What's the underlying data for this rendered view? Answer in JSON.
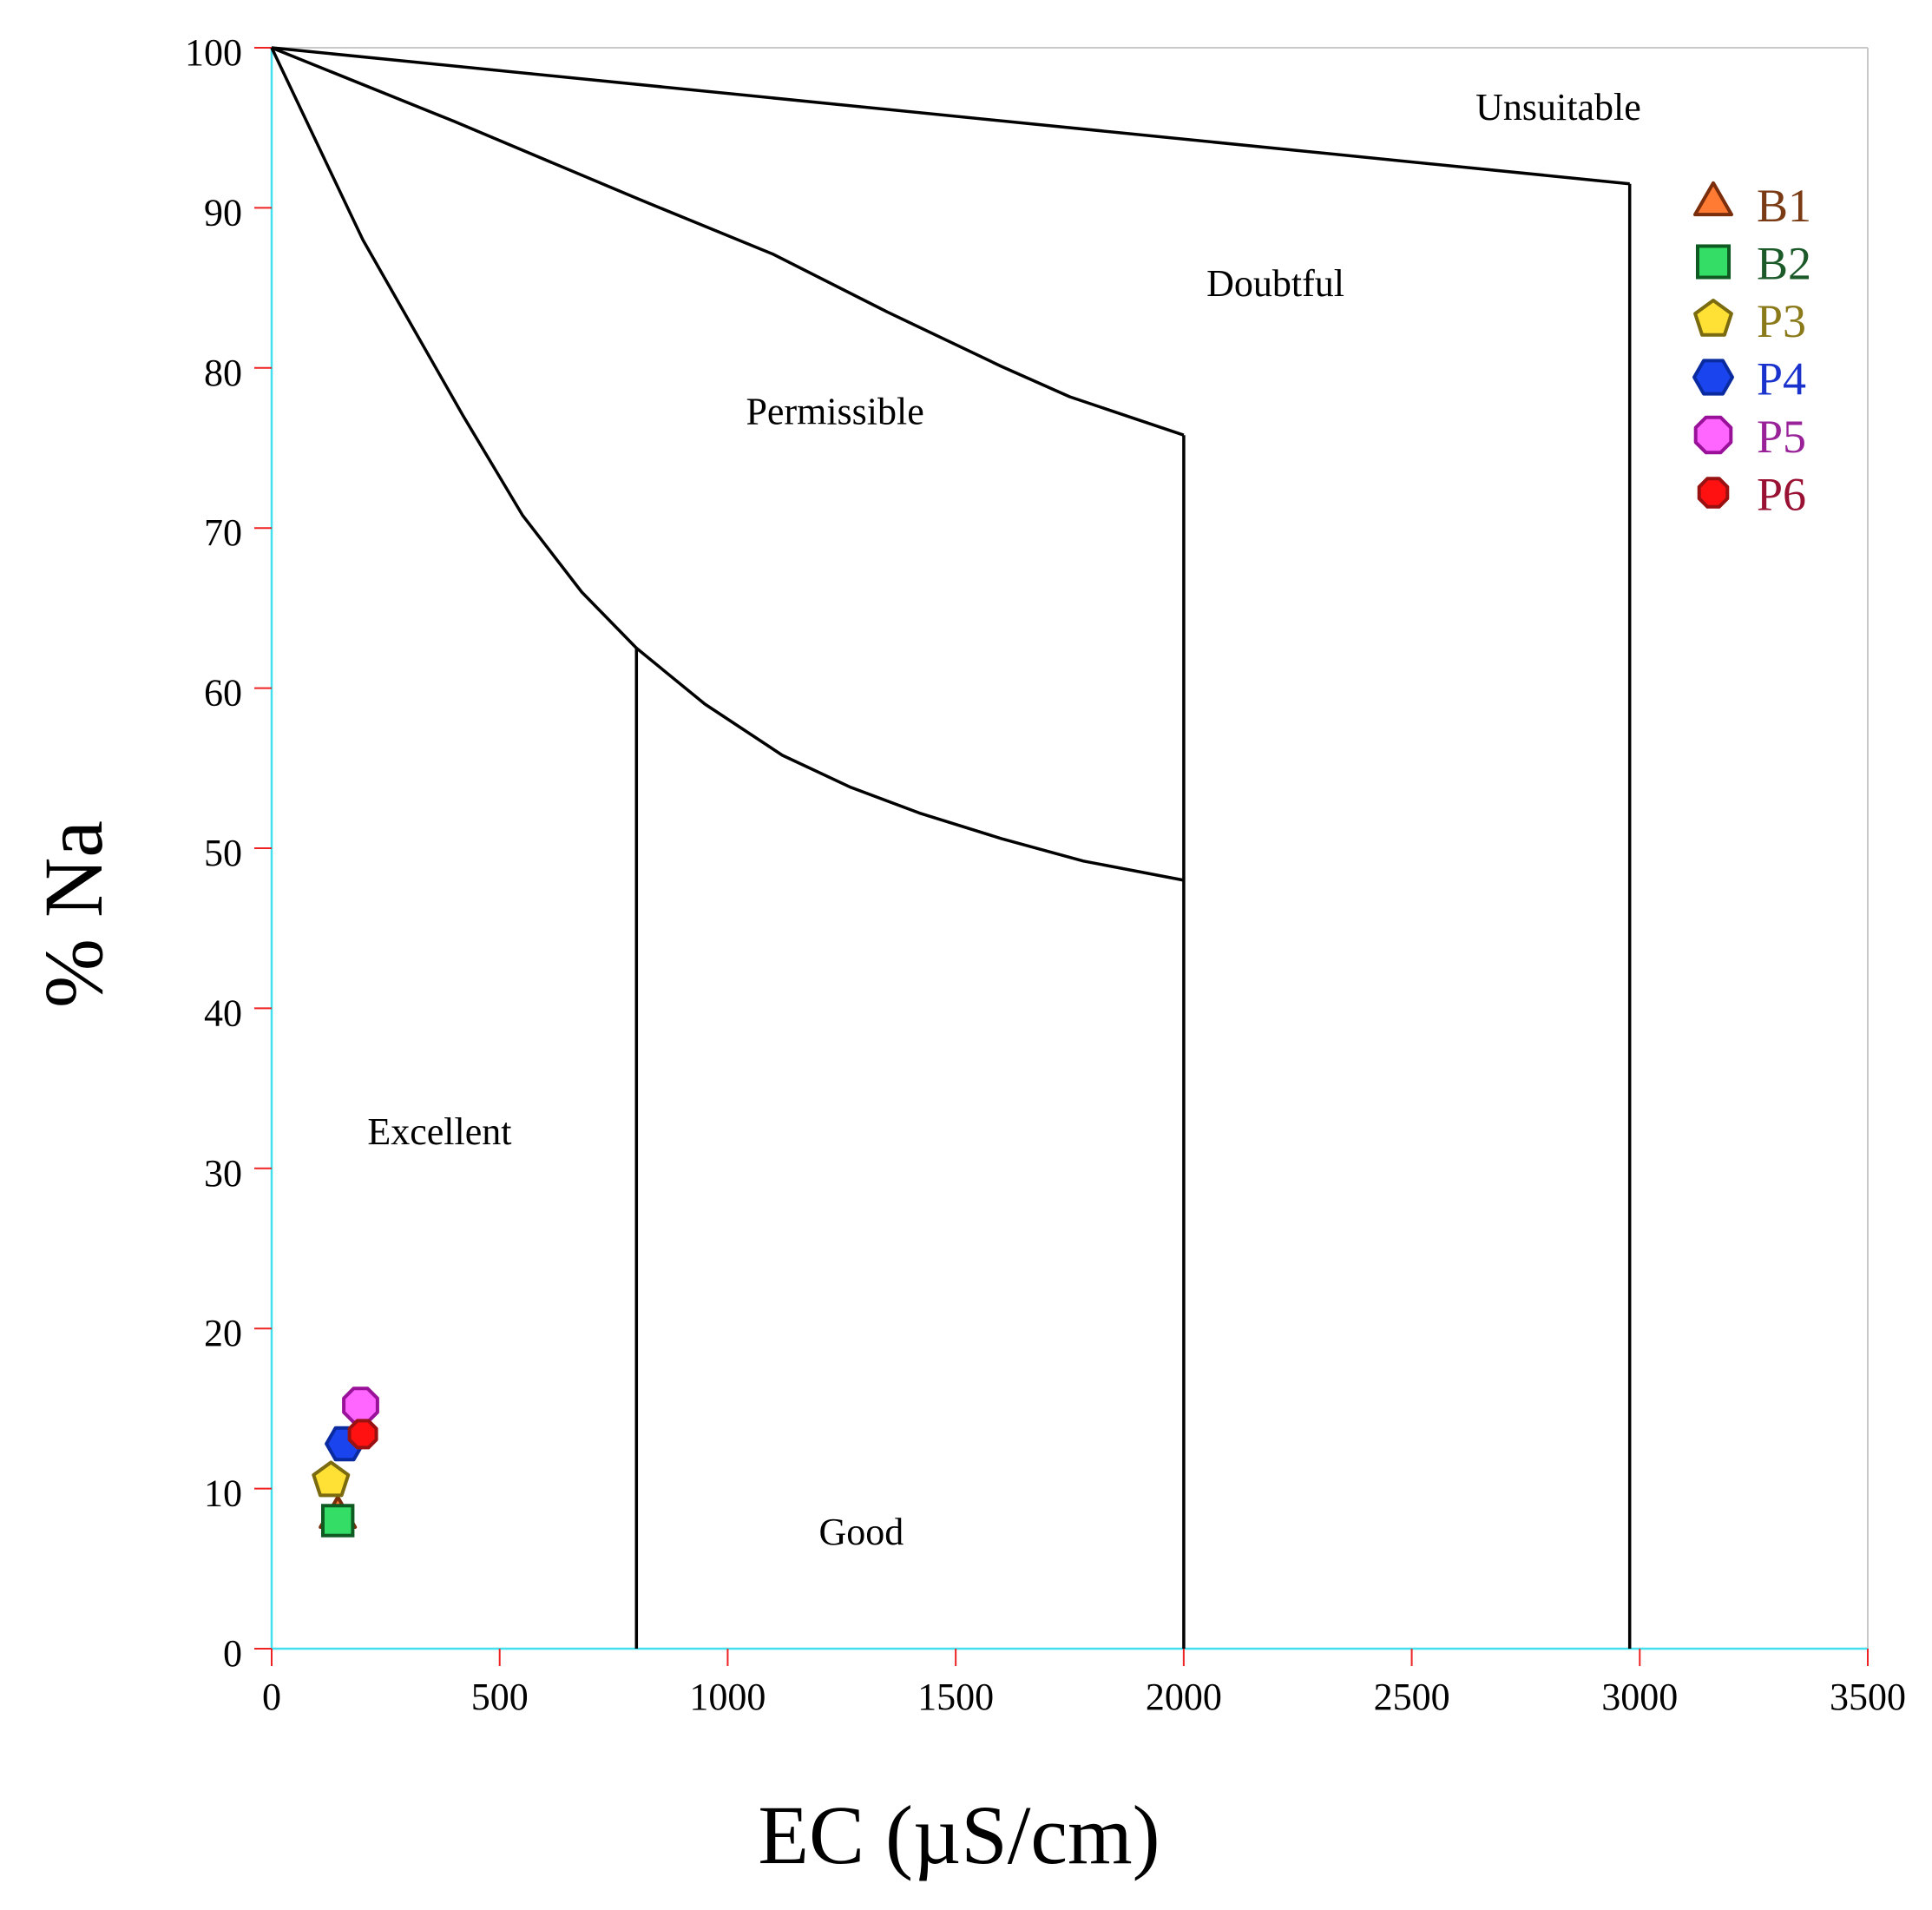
{
  "chart_data": {
    "type": "scatter",
    "title": "",
    "xlabel": "EC (µS/cm)",
    "ylabel": "% Na",
    "xlim": [
      0,
      3500
    ],
    "ylim": [
      0,
      100
    ],
    "x_ticks": [
      0,
      500,
      1000,
      1500,
      2000,
      2500,
      3000,
      3500
    ],
    "y_ticks": [
      0,
      10,
      20,
      30,
      40,
      50,
      60,
      70,
      80,
      90,
      100
    ],
    "x_tick_labels": [
      "0",
      "500",
      "1000",
      "1500",
      "2000",
      "2500",
      "3000",
      "3500"
    ],
    "y_tick_labels": [
      "0",
      "10",
      "20",
      "30",
      "40",
      "50",
      "60",
      "70",
      "80",
      "90",
      "100"
    ],
    "grid": false,
    "legend_position": "top-right",
    "series": [
      {
        "name": "B1",
        "marker": "triangle",
        "fill": "#ff7a33",
        "stroke": "#7a2e0b",
        "label_color": "#7a3a14",
        "points": [
          [
            145,
            8
          ]
        ]
      },
      {
        "name": "B2",
        "marker": "square",
        "fill": "#33dd66",
        "stroke": "#0f5a22",
        "label_color": "#1d5a2a",
        "points": [
          [
            145,
            8
          ]
        ]
      },
      {
        "name": "P3",
        "marker": "pentagon",
        "fill": "#ffe034",
        "stroke": "#7a6a10",
        "label_color": "#8a7a1a",
        "points": [
          [
            130,
            10.5
          ]
        ]
      },
      {
        "name": "P4",
        "marker": "hexagon",
        "fill": "#1a44ee",
        "stroke": "#0a2aa0",
        "label_color": "#1a33cc",
        "points": [
          [
            160,
            12.8
          ]
        ]
      },
      {
        "name": "P5",
        "marker": "octagon",
        "fill": "#ff66ff",
        "stroke": "#991199",
        "label_color": "#992299",
        "points": [
          [
            195,
            15.2
          ]
        ]
      },
      {
        "name": "P6",
        "marker": "octagon",
        "fill": "#ff1111",
        "stroke": "#991111",
        "label_color": "#991133",
        "points": [
          [
            200,
            13.4
          ]
        ]
      }
    ],
    "boundaries": [
      {
        "name": "excellent-good-boundary",
        "points": [
          [
            0,
            100
          ],
          [
            200,
            88
          ],
          [
            420,
            77
          ],
          [
            550,
            70.8
          ],
          [
            680,
            66
          ],
          [
            800,
            62.5
          ]
        ]
      },
      {
        "name": "excellent-vertical-boundary",
        "points": [
          [
            800,
            62.5
          ],
          [
            800,
            0
          ]
        ]
      },
      {
        "name": "good-permissible-boundary",
        "points": [
          [
            800,
            62.5
          ],
          [
            950,
            59
          ],
          [
            1120,
            55.8
          ],
          [
            1270,
            53.8
          ],
          [
            1420,
            52.2
          ],
          [
            1600,
            50.6
          ],
          [
            1780,
            49.2
          ],
          [
            2000,
            48
          ]
        ]
      },
      {
        "name": "permissible-doubtful-boundary",
        "points": [
          [
            0,
            100
          ],
          [
            400,
            95.4
          ],
          [
            800,
            90.6
          ],
          [
            1100,
            87.1
          ],
          [
            1350,
            83.5
          ],
          [
            1600,
            80.1
          ],
          [
            1750,
            78.2
          ],
          [
            2000,
            75.8
          ]
        ]
      },
      {
        "name": "good-vertical-boundary",
        "points": [
          [
            2000,
            75.8
          ],
          [
            2000,
            0
          ]
        ]
      },
      {
        "name": "doubtful-unsuitable-boundary",
        "points": [
          [
            0,
            100
          ],
          [
            2978,
            91.5
          ]
        ]
      },
      {
        "name": "doubtful-vertical-boundary",
        "points": [
          [
            2978,
            91.5
          ],
          [
            2978,
            0
          ]
        ]
      }
    ],
    "regions": [
      {
        "name": "Unsuitable",
        "x": 2640,
        "y": 95.5
      },
      {
        "name": "Doubtful",
        "x": 2050,
        "y": 84.5
      },
      {
        "name": "Permissible",
        "x": 1040,
        "y": 76.5
      },
      {
        "name": "Excellent",
        "x": 210,
        "y": 31.5
      },
      {
        "name": "Good",
        "x": 1200,
        "y": 6.5
      }
    ]
  }
}
